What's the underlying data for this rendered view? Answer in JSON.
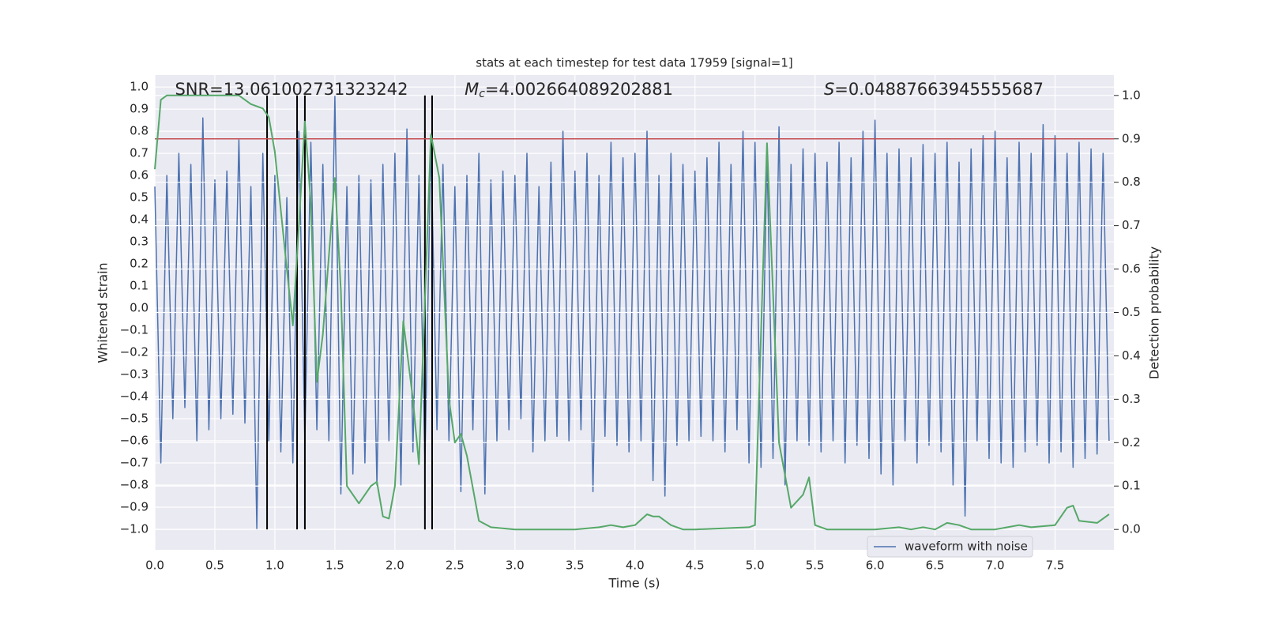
{
  "chart_data": {
    "type": "line",
    "title": "stats at each timestep for test data 17959 [signal=1]",
    "x_label": "Time (s)",
    "y_label": "Whitened strain",
    "y2_label": "Detection probability",
    "xlim": [
      0,
      7.99
    ],
    "ylim": [
      -1.093,
      1.054
    ],
    "y2lim": [
      -0.047,
      1.047
    ],
    "xticks": [
      {
        "value": 0,
        "label": "0.0"
      },
      0.5,
      {
        "value": 1,
        "label": "1.0"
      },
      1.5,
      {
        "value": 2,
        "label": "2.0"
      },
      2.5,
      {
        "value": 3,
        "label": "3.0"
      },
      3.5,
      {
        "value": 4,
        "label": "4.0"
      },
      4.5,
      {
        "value": 5,
        "label": "5.0"
      },
      5.5,
      {
        "value": 6,
        "label": "6.0"
      },
      6.5,
      {
        "value": 7,
        "label": "7.0"
      },
      7.5
    ],
    "yticks": [
      {
        "value": 1,
        "label": "1.0"
      },
      0.9,
      0.8,
      0.7,
      0.6,
      0.5,
      0.4,
      0.3,
      0.2,
      0.1,
      {
        "value": 0,
        "label": "0.0"
      },
      {
        "value": -0.1,
        "label": "−0.1"
      },
      {
        "value": -0.2,
        "label": "−0.2"
      },
      {
        "value": -0.3,
        "label": "−0.3"
      },
      {
        "value": -0.4,
        "label": "−0.4"
      },
      {
        "value": -0.5,
        "label": "−0.5"
      },
      {
        "value": -0.6,
        "label": "−0.6"
      },
      {
        "value": -0.7,
        "label": "−0.7"
      },
      {
        "value": -0.8,
        "label": "−0.8"
      },
      {
        "value": -0.9,
        "label": "−0.9"
      },
      {
        "value": -1,
        "label": "−1.0"
      }
    ],
    "y2ticks": [
      {
        "value": 0,
        "label": "0.0"
      },
      0.1,
      0.2,
      0.3,
      0.4,
      0.5,
      0.6,
      0.7,
      0.8,
      0.9,
      {
        "value": 1,
        "label": "1.0"
      }
    ],
    "grid": true,
    "legend": "lower right",
    "series": [
      {
        "name": "waveform with noise",
        "color": "#4c72b0",
        "x": [
          0,
          0.05,
          0.1,
          0.15,
          0.2,
          0.25,
          0.3,
          0.35,
          0.4,
          0.45,
          0.5,
          0.55,
          0.6,
          0.65,
          0.7,
          0.75,
          0.8,
          0.85,
          0.9,
          0.95,
          1,
          1.05,
          1.1,
          1.15,
          1.2,
          1.25,
          1.3,
          1.35,
          1.4,
          1.45,
          1.5,
          1.55,
          1.6,
          1.65,
          1.7,
          1.75,
          1.8,
          1.85,
          1.9,
          1.95,
          2,
          2.05,
          2.1,
          2.15,
          2.2,
          2.25,
          2.3,
          2.35,
          2.4,
          2.45,
          2.5,
          2.55,
          2.6,
          2.65,
          2.7,
          2.75,
          2.8,
          2.85,
          2.9,
          2.95,
          3,
          3.05,
          3.1,
          3.15,
          3.2,
          3.25,
          3.3,
          3.35,
          3.4,
          3.45,
          3.5,
          3.55,
          3.6,
          3.65,
          3.7,
          3.75,
          3.8,
          3.85,
          3.9,
          3.95,
          4,
          4.05,
          4.1,
          4.15,
          4.2,
          4.25,
          4.3,
          4.35,
          4.4,
          4.45,
          4.5,
          4.55,
          4.6,
          4.65,
          4.7,
          4.75,
          4.8,
          4.85,
          4.9,
          4.95,
          5,
          5.05,
          5.1,
          5.15,
          5.2,
          5.25,
          5.3,
          5.35,
          5.4,
          5.45,
          5.5,
          5.55,
          5.6,
          5.65,
          5.7,
          5.75,
          5.8,
          5.85,
          5.9,
          5.95,
          6,
          6.05,
          6.1,
          6.15,
          6.2,
          6.25,
          6.3,
          6.35,
          6.4,
          6.45,
          6.5,
          6.55,
          6.6,
          6.65,
          6.7,
          6.75,
          6.8,
          6.85,
          6.9,
          6.95,
          7,
          7.05,
          7.1,
          7.15,
          7.2,
          7.25,
          7.3,
          7.35,
          7.4,
          7.45,
          7.5,
          7.55,
          7.6,
          7.65,
          7.7,
          7.75,
          7.8,
          7.85,
          7.9,
          7.95
        ],
        "values": [
          0.55,
          -0.7,
          0.6,
          -0.5,
          0.7,
          -0.45,
          0.65,
          -0.6,
          0.86,
          -0.55,
          0.58,
          -0.5,
          0.62,
          -0.48,
          0.76,
          -0.52,
          0.55,
          -1.0,
          0.7,
          -0.6,
          0.6,
          -0.65,
          0.5,
          -0.7,
          0.8,
          -0.6,
          0.75,
          -0.55,
          0.65,
          -0.6,
          0.96,
          -0.84,
          0.55,
          -0.75,
          0.6,
          -0.7,
          0.58,
          -0.8,
          0.65,
          -0.6,
          0.7,
          -0.8,
          0.81,
          -0.65,
          0.6,
          -0.7,
          0.75,
          -0.55,
          0.65,
          -0.6,
          0.55,
          -0.83,
          0.6,
          -0.55,
          0.7,
          -0.84,
          0.58,
          -0.6,
          0.62,
          -0.55,
          0.6,
          -0.5,
          0.7,
          -0.65,
          0.55,
          -0.6,
          0.66,
          -0.58,
          0.8,
          -0.6,
          0.62,
          -0.55,
          0.7,
          -0.83,
          0.6,
          -0.58,
          0.75,
          -0.62,
          0.68,
          -0.65,
          0.7,
          -0.6,
          0.8,
          -0.78,
          0.6,
          -0.85,
          0.7,
          -0.62,
          0.65,
          -0.6,
          0.62,
          -0.58,
          0.68,
          -0.6,
          0.75,
          -0.65,
          0.65,
          -0.55,
          0.8,
          -0.7,
          0.75,
          -0.72,
          0.7,
          -0.68,
          0.82,
          -0.8,
          0.65,
          -0.6,
          0.72,
          -0.62,
          0.7,
          -0.65,
          0.66,
          -0.6,
          0.75,
          -0.7,
          0.68,
          -0.62,
          0.8,
          -0.68,
          0.85,
          -0.75,
          0.7,
          -0.8,
          0.72,
          -0.6,
          0.68,
          -0.7,
          0.74,
          -0.62,
          0.7,
          -0.65,
          0.75,
          -0.8,
          0.66,
          -0.94,
          0.72,
          -0.6,
          0.78,
          -0.68,
          0.8,
          -0.7,
          0.68,
          -0.72,
          0.75,
          -0.65,
          0.7,
          -0.62,
          0.83,
          -0.7,
          0.78,
          -0.65,
          0.7,
          -0.72,
          0.75,
          -0.68,
          0.72,
          -0.66,
          0.7,
          -0.6
        ]
      },
      {
        "color": "#55a868",
        "axis": "y2",
        "x": [
          0,
          0.05,
          0.1,
          0.2,
          0.3,
          0.4,
          0.5,
          0.6,
          0.7,
          0.8,
          0.9,
          0.95,
          1.0,
          1.1,
          1.15,
          1.2,
          1.25,
          1.3,
          1.35,
          1.4,
          1.5,
          1.55,
          1.6,
          1.7,
          1.8,
          1.85,
          1.9,
          1.95,
          2.0,
          2.07,
          2.15,
          2.2,
          2.3,
          2.37,
          2.45,
          2.5,
          2.55,
          2.6,
          2.7,
          2.8,
          3.0,
          3.5,
          3.7,
          3.8,
          3.9,
          4.0,
          4.1,
          4.15,
          4.2,
          4.3,
          4.4,
          4.5,
          4.95,
          5.0,
          5.1,
          5.2,
          5.3,
          5.4,
          5.45,
          5.5,
          5.6,
          6.0,
          6.2,
          6.3,
          6.4,
          6.5,
          6.6,
          6.7,
          6.8,
          7.0,
          7.2,
          7.3,
          7.5,
          7.6,
          7.65,
          7.7,
          7.85,
          7.95
        ],
        "values": [
          0.83,
          0.99,
          1.0,
          1.0,
          1.0,
          1.0,
          1.0,
          1.0,
          1.0,
          0.98,
          0.97,
          0.95,
          0.87,
          0.6,
          0.47,
          0.7,
          0.94,
          0.75,
          0.34,
          0.45,
          0.81,
          0.55,
          0.1,
          0.06,
          0.1,
          0.11,
          0.03,
          0.025,
          0.1,
          0.48,
          0.3,
          0.15,
          0.91,
          0.81,
          0.3,
          0.2,
          0.22,
          0.17,
          0.02,
          0.005,
          0.0,
          0.0,
          0.005,
          0.01,
          0.005,
          0.01,
          0.035,
          0.03,
          0.03,
          0.01,
          0.0,
          0.0,
          0.005,
          0.01,
          0.89,
          0.2,
          0.05,
          0.08,
          0.12,
          0.01,
          0.0,
          0.0,
          0.005,
          0.0,
          0.005,
          0.0,
          0.015,
          0.01,
          0.0,
          0.0,
          0.01,
          0.005,
          0.01,
          0.05,
          0.055,
          0.02,
          0.015,
          0.035
        ]
      }
    ],
    "hline": {
      "value": 0.9,
      "axis": "y2",
      "color": "#c44e52"
    },
    "vlines": {
      "x": [
        0.935,
        1.185,
        1.25,
        2.25,
        2.31
      ],
      "span": [
        0,
        1
      ],
      "axis": "y2",
      "color": "#000000"
    },
    "annotations": [
      {
        "text": "SNR=13.061002731323242"
      },
      {
        "symbol": "M",
        "subscript": "c",
        "text": "=4.002664089202881"
      },
      {
        "symbol": "S",
        "text": "=0.04887663945555687"
      }
    ]
  }
}
